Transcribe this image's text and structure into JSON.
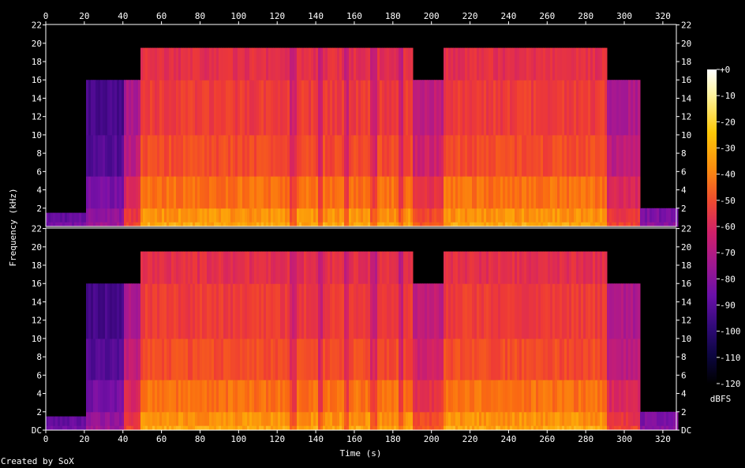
{
  "chart_data": {
    "type": "heatmap",
    "title": "",
    "xlabel": "Time (s)",
    "ylabel": "Frequency (kHz)",
    "x_ticks": [
      "0",
      "20",
      "40",
      "60",
      "80",
      "100",
      "120",
      "140",
      "160",
      "180",
      "200",
      "220",
      "240",
      "260",
      "280",
      "300",
      "320"
    ],
    "xlim": [
      0,
      327
    ],
    "channels": [
      {
        "y_ticks": [
          "22",
          "20",
          "18",
          "16",
          "14",
          "12",
          "10",
          "8",
          "6",
          "4",
          "2"
        ]
      },
      {
        "y_ticks": [
          "22",
          "20",
          "18",
          "16",
          "14",
          "12",
          "10",
          "8",
          "6",
          "4",
          "2",
          "DC"
        ]
      }
    ],
    "ylim": [
      0,
      22.05
    ],
    "colorbar": {
      "label": "dBFS",
      "ticks": [
        "+0",
        "-10",
        "-20",
        "-30",
        "-40",
        "-50",
        "-60",
        "-70",
        "-80",
        "-90",
        "-100",
        "-110",
        "-120"
      ],
      "range": [
        -120,
        0
      ],
      "palette": [
        "#000000",
        "#0a0030",
        "#240060",
        "#4a0a90",
        "#7a10a8",
        "#a81890",
        "#d0206a",
        "#ee3a36",
        "#fa6a12",
        "#fdaa08",
        "#fee05a",
        "#ffffff"
      ]
    },
    "segments": [
      {
        "t": [
          0,
          20
        ],
        "bandwidth_khz": 1.5,
        "level_db": -95
      },
      {
        "t": [
          20,
          40.5
        ],
        "bandwidth_khz": 16,
        "level_db": -85
      },
      {
        "t": [
          40.5,
          48
        ],
        "bandwidth_khz": 16,
        "level_db": -60
      },
      {
        "t": [
          48,
          190
        ],
        "bandwidth_khz": 19.5,
        "level_db": -40
      },
      {
        "t": [
          190,
          206
        ],
        "bandwidth_khz": 16,
        "level_db": -55
      },
      {
        "t": [
          206,
          290
        ],
        "bandwidth_khz": 19.5,
        "level_db": -40
      },
      {
        "t": [
          290,
          307
        ],
        "bandwidth_khz": 16,
        "level_db": -60
      },
      {
        "t": [
          307,
          327
        ],
        "bandwidth_khz": 2,
        "level_db": -90
      }
    ]
  },
  "footer": {
    "credit": "Created by SoX"
  }
}
